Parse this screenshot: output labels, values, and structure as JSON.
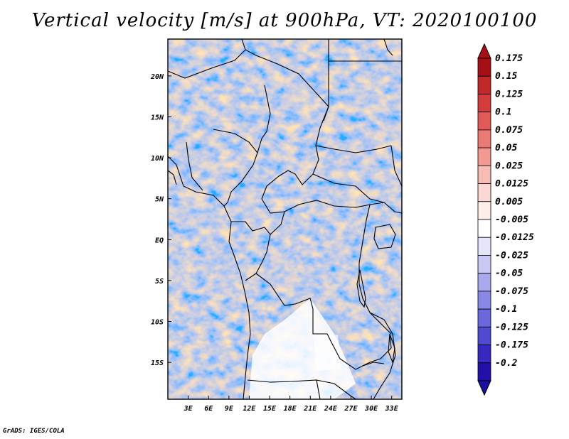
{
  "title": "Vertical velocity [m/s] at 900hPa, VT: 2020100100",
  "credit": "GrADS: IGES/COLA",
  "map": {
    "lon_range": [
      0,
      34.5
    ],
    "lat_range": [
      -19.5,
      24.5
    ],
    "lon_ticks": [
      {
        "value": 3,
        "label": "3E"
      },
      {
        "value": 6,
        "label": "6E"
      },
      {
        "value": 9,
        "label": "9E"
      },
      {
        "value": 12,
        "label": "12E"
      },
      {
        "value": 15,
        "label": "15E"
      },
      {
        "value": 18,
        "label": "18E"
      },
      {
        "value": 21,
        "label": "21E"
      },
      {
        "value": 24,
        "label": "24E"
      },
      {
        "value": 27,
        "label": "27E"
      },
      {
        "value": 30,
        "label": "30E"
      },
      {
        "value": 33,
        "label": "33E"
      }
    ],
    "lat_ticks": [
      {
        "value": 20,
        "label": "20N"
      },
      {
        "value": 15,
        "label": "15N"
      },
      {
        "value": 10,
        "label": "10N"
      },
      {
        "value": 5,
        "label": "5N"
      },
      {
        "value": 0,
        "label": "EQ"
      },
      {
        "value": -5,
        "label": "5S"
      },
      {
        "value": -10,
        "label": "10S"
      },
      {
        "value": -15,
        "label": "15S"
      }
    ]
  },
  "colorbar": {
    "units": "m/s",
    "max_color": "#a50f15",
    "min_color": "#1a0fa0",
    "levels": [
      {
        "label": "0.175",
        "color": "#a50f15"
      },
      {
        "label": "0.15",
        "color": "#c0282a"
      },
      {
        "label": "0.125",
        "color": "#d43c3c"
      },
      {
        "label": "0.1",
        "color": "#e25a58"
      },
      {
        "label": "0.075",
        "color": "#ec7a74"
      },
      {
        "label": "0.05",
        "color": "#f29a92"
      },
      {
        "label": "0.025",
        "color": "#f7bcb4"
      },
      {
        "label": "0.0125",
        "color": "#fbd8d2"
      },
      {
        "label": "0.005",
        "color": "#fdeeea"
      },
      {
        "label": "-0.005",
        "color": "#ffffff"
      },
      {
        "label": "-0.0125",
        "color": "#e6e6fb"
      },
      {
        "label": "-0.025",
        "color": "#c9c9f4"
      },
      {
        "label": "-0.05",
        "color": "#a9a9ee"
      },
      {
        "label": "-0.075",
        "color": "#8a88e6"
      },
      {
        "label": "-0.1",
        "color": "#6c68dc"
      },
      {
        "label": "-0.125",
        "color": "#504ad0"
      },
      {
        "label": "-0.175",
        "color": "#3628c0"
      },
      {
        "label": "-0.2",
        "color": "#2210a8"
      }
    ]
  }
}
